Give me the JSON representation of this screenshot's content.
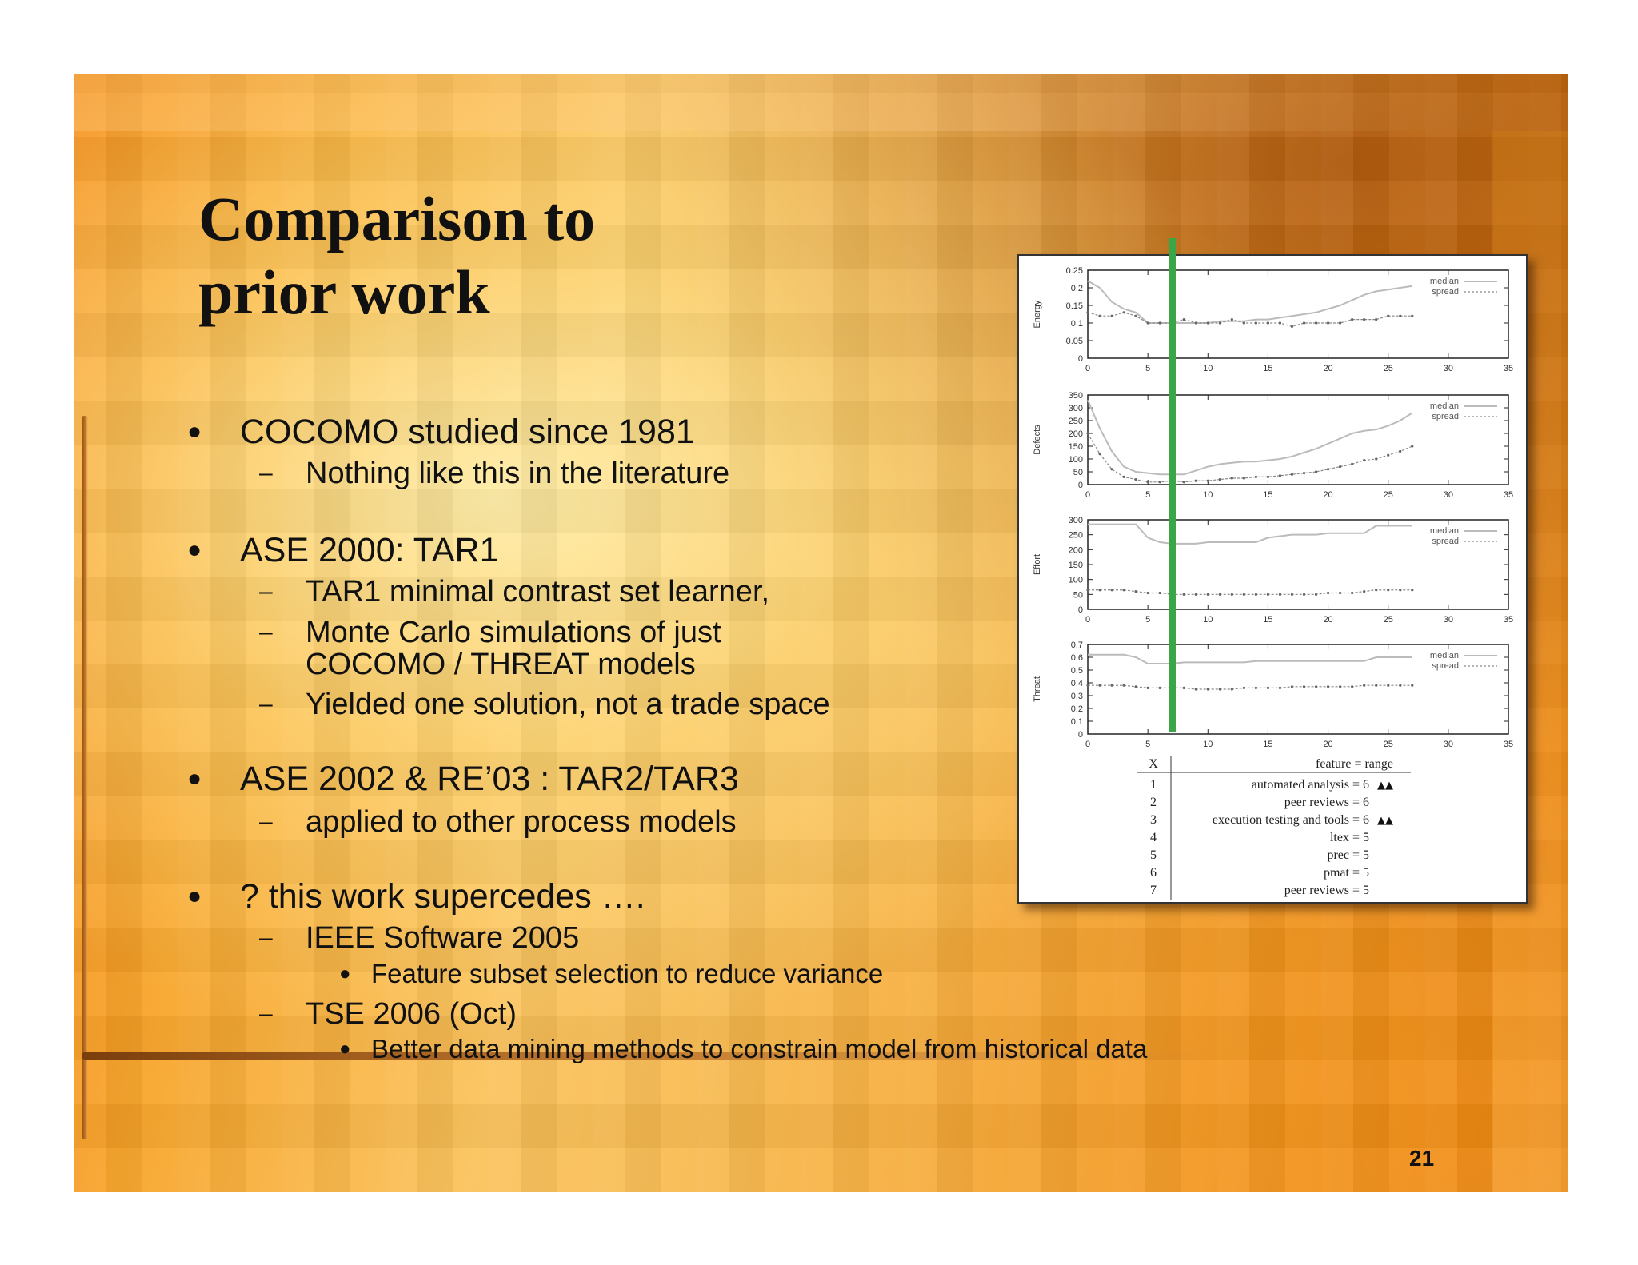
{
  "slide": {
    "title": "Comparison to\nprior work",
    "page_number": "21",
    "bullets": [
      {
        "text": "COCOMO studied since 1981",
        "subs": [
          "Nothing like this in the literature"
        ]
      },
      {
        "text": "ASE 2000: TAR1",
        "subs": [
          "TAR1 minimal contrast set learner,",
          "Monte Carlo simulations of just",
          "COCOMO / THREAT models",
          "Yielded one solution, not a trade space"
        ]
      },
      {
        "text": "ASE 2002 & RE’03 : TAR2/TAR3",
        "subs": [
          "applied  to other process models"
        ]
      },
      {
        "text": "? this work supercedes ….",
        "subs": [
          "IEEE Software 2005",
          "TSE 2006 (Oct)"
        ],
        "subsubs": [
          "Feature subset selection to reduce variance",
          "Better data mining methods to constrain model from historical data"
        ]
      }
    ]
  },
  "colors": {
    "highlight_bar": "#3aa648",
    "median_line": "#bbbbbb",
    "spread_line": "#888888"
  },
  "chart_data": [
    {
      "type": "line",
      "ylabel": "Energy",
      "xlim": [
        0,
        35
      ],
      "ylim": [
        0,
        0.25
      ],
      "x_ticks": [
        "0",
        "5",
        "10",
        "15",
        "20",
        "25",
        "30",
        "35"
      ],
      "y_ticks": [
        "0",
        "0.05",
        "0.1",
        "0.15",
        "0.2",
        "0.25"
      ],
      "legend": [
        "median",
        "spread"
      ],
      "x": [
        0,
        1,
        2,
        3,
        4,
        5,
        6,
        7,
        8,
        9,
        10,
        11,
        12,
        13,
        14,
        15,
        16,
        17,
        18,
        19,
        20,
        21,
        22,
        23,
        24,
        25,
        26,
        27
      ],
      "series": [
        {
          "name": "median",
          "values": [
            0.22,
            0.2,
            0.16,
            0.14,
            0.13,
            0.1,
            0.1,
            0.1,
            0.1,
            0.1,
            0.1,
            0.105,
            0.105,
            0.105,
            0.11,
            0.11,
            0.115,
            0.12,
            0.125,
            0.13,
            0.14,
            0.15,
            0.165,
            0.18,
            0.19,
            0.195,
            0.2,
            0.205
          ]
        },
        {
          "name": "spread",
          "values": [
            0.13,
            0.12,
            0.12,
            0.13,
            0.12,
            0.1,
            0.1,
            0.1,
            0.11,
            0.1,
            0.1,
            0.1,
            0.11,
            0.1,
            0.1,
            0.1,
            0.1,
            0.09,
            0.1,
            0.1,
            0.1,
            0.1,
            0.11,
            0.11,
            0.11,
            0.12,
            0.12,
            0.12
          ]
        }
      ]
    },
    {
      "type": "line",
      "ylabel": "Defects",
      "xlim": [
        0,
        35
      ],
      "ylim": [
        0,
        350
      ],
      "x_ticks": [
        "0",
        "5",
        "10",
        "15",
        "20",
        "25",
        "30",
        "35"
      ],
      "y_ticks": [
        "0",
        "50",
        "100",
        "150",
        "200",
        "250",
        "300",
        "350"
      ],
      "legend": [
        "median",
        "spread"
      ],
      "x": [
        0,
        1,
        2,
        3,
        4,
        5,
        6,
        7,
        8,
        9,
        10,
        11,
        12,
        13,
        14,
        15,
        16,
        17,
        18,
        19,
        20,
        21,
        22,
        23,
        24,
        25,
        26,
        27
      ],
      "series": [
        {
          "name": "median",
          "values": [
            330,
            220,
            130,
            70,
            50,
            45,
            40,
            40,
            40,
            55,
            70,
            80,
            85,
            90,
            90,
            95,
            100,
            110,
            125,
            140,
            160,
            180,
            200,
            210,
            215,
            230,
            250,
            280
          ]
        },
        {
          "name": "spread",
          "values": [
            200,
            120,
            60,
            30,
            20,
            10,
            10,
            15,
            10,
            15,
            15,
            20,
            25,
            25,
            30,
            30,
            35,
            40,
            45,
            50,
            60,
            70,
            80,
            95,
            100,
            115,
            130,
            150
          ]
        }
      ]
    },
    {
      "type": "line",
      "ylabel": "Effort",
      "xlim": [
        0,
        35
      ],
      "ylim": [
        0,
        300
      ],
      "x_ticks": [
        "0",
        "5",
        "10",
        "15",
        "20",
        "25",
        "30",
        "35"
      ],
      "y_ticks": [
        "0",
        "50",
        "100",
        "150",
        "200",
        "250",
        "300"
      ],
      "legend": [
        "median",
        "spread"
      ],
      "x": [
        0,
        1,
        2,
        3,
        4,
        5,
        6,
        7,
        8,
        9,
        10,
        11,
        12,
        13,
        14,
        15,
        16,
        17,
        18,
        19,
        20,
        21,
        22,
        23,
        24,
        25,
        26,
        27
      ],
      "series": [
        {
          "name": "median",
          "values": [
            285,
            285,
            285,
            285,
            285,
            240,
            225,
            220,
            220,
            220,
            225,
            225,
            225,
            225,
            225,
            240,
            245,
            250,
            250,
            250,
            255,
            255,
            255,
            255,
            280,
            280,
            280,
            280
          ]
        },
        {
          "name": "spread",
          "values": [
            65,
            65,
            65,
            65,
            60,
            55,
            55,
            50,
            50,
            50,
            50,
            50,
            50,
            50,
            50,
            50,
            50,
            50,
            50,
            50,
            55,
            55,
            55,
            60,
            65,
            65,
            65,
            65
          ]
        }
      ]
    },
    {
      "type": "line",
      "ylabel": "Threat",
      "xlim": [
        0,
        35
      ],
      "ylim": [
        0,
        0.7
      ],
      "x_ticks": [
        "0",
        "5",
        "10",
        "15",
        "20",
        "25",
        "30",
        "35"
      ],
      "y_ticks": [
        "0",
        "0.1",
        "0.2",
        "0.3",
        "0.4",
        "0.5",
        "0.6",
        "0.7"
      ],
      "legend": [
        "median",
        "spread"
      ],
      "x": [
        0,
        1,
        2,
        3,
        4,
        5,
        6,
        7,
        8,
        9,
        10,
        11,
        12,
        13,
        14,
        15,
        16,
        17,
        18,
        19,
        20,
        21,
        22,
        23,
        24,
        25,
        26,
        27
      ],
      "series": [
        {
          "name": "median",
          "values": [
            0.62,
            0.62,
            0.62,
            0.62,
            0.6,
            0.55,
            0.55,
            0.55,
            0.56,
            0.56,
            0.56,
            0.56,
            0.56,
            0.56,
            0.57,
            0.57,
            0.57,
            0.57,
            0.57,
            0.57,
            0.57,
            0.57,
            0.57,
            0.57,
            0.6,
            0.6,
            0.6,
            0.6
          ]
        },
        {
          "name": "spread",
          "values": [
            0.38,
            0.38,
            0.38,
            0.38,
            0.37,
            0.36,
            0.36,
            0.36,
            0.36,
            0.35,
            0.35,
            0.35,
            0.35,
            0.36,
            0.36,
            0.36,
            0.36,
            0.37,
            0.37,
            0.37,
            0.37,
            0.37,
            0.37,
            0.38,
            0.38,
            0.38,
            0.38,
            0.38
          ]
        }
      ]
    }
  ],
  "table": {
    "headers": [
      "X",
      "feature = range"
    ],
    "rows": [
      {
        "x": "1",
        "feature": "automated analysis = 6",
        "marks": "▲▲"
      },
      {
        "x": "2",
        "feature": "peer reviews = 6",
        "marks": ""
      },
      {
        "x": "3",
        "feature": "execution testing and tools = 6",
        "marks": "▲▲"
      },
      {
        "x": "4",
        "feature": "ltex = 5",
        "marks": ""
      },
      {
        "x": "5",
        "feature": "prec = 5",
        "marks": ""
      },
      {
        "x": "6",
        "feature": "pmat = 5",
        "marks": ""
      },
      {
        "x": "7",
        "feature": "peer reviews = 5",
        "marks": ""
      }
    ]
  }
}
